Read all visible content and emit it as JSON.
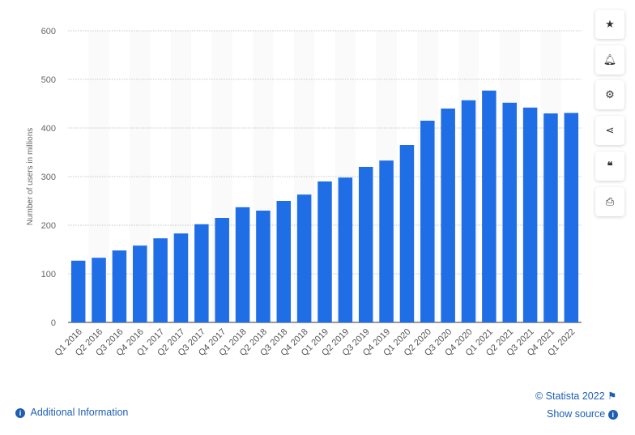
{
  "chart_data": {
    "type": "bar",
    "title": "",
    "xlabel": "",
    "ylabel": "Number of users in millions",
    "ylim": [
      0,
      600
    ],
    "yticks": [
      0,
      100,
      200,
      300,
      400,
      500,
      600
    ],
    "grid": true,
    "bar_color": "#1f6ee6",
    "categories": [
      "Q1 2016",
      "Q2 2016",
      "Q3 2016",
      "Q4 2016",
      "Q1 2017",
      "Q2 2017",
      "Q3 2017",
      "Q4 2017",
      "Q1 2018",
      "Q2 2018",
      "Q3 2018",
      "Q4 2018",
      "Q1 2019",
      "Q2 2019",
      "Q3 2019",
      "Q4 2019",
      "Q1 2020",
      "Q2 2020",
      "Q3 2020",
      "Q4 2020",
      "Q1 2021",
      "Q2 2021",
      "Q3 2021",
      "Q4 2021",
      "Q1 2022"
    ],
    "values": [
      127,
      133,
      148,
      158,
      173,
      183,
      202,
      215,
      237,
      230,
      250,
      263,
      290,
      298,
      320,
      333,
      365,
      415,
      440,
      457,
      477,
      452,
      442,
      430,
      431
    ]
  },
  "sidebar": {
    "icons": [
      "star-icon",
      "bell-icon",
      "gear-icon",
      "share-icon",
      "quote-icon",
      "print-icon"
    ]
  },
  "footer": {
    "additional_info": "Additional Information",
    "copyright": "© Statista 2022",
    "show_source": "Show source"
  }
}
